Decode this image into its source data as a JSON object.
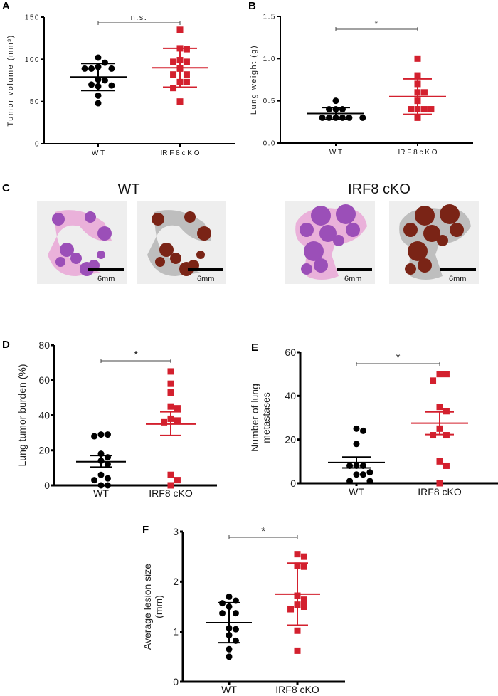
{
  "panels": {
    "A": "A",
    "B": "B",
    "C": "C",
    "D": "D",
    "E": "E",
    "F": "F"
  },
  "panel_c": {
    "groups": [
      {
        "title": "WT",
        "images": [
          {
            "stain": "H&E",
            "scale_label": "6mm"
          },
          {
            "stain": "tumor-mask",
            "scale_label": "6mm"
          }
        ]
      },
      {
        "title": "IRF8 cKO",
        "images": [
          {
            "stain": "H&E",
            "scale_label": "6mm"
          },
          {
            "stain": "tumor-mask",
            "scale_label": "6mm"
          }
        ]
      }
    ],
    "colors": {
      "he_tissue": "#e9a6d6",
      "he_tumor": "#9b4fb8",
      "mask_tissue": "#b5b5b5",
      "mask_tumor": "#7a2416",
      "background": "#eeeeee"
    }
  },
  "colors": {
    "WT": "#000000",
    "IRF8 cKO": "#d3202e"
  },
  "chart_data": [
    {
      "id": "A",
      "type": "scatter",
      "ylabel": "Tumor volume (mm³)",
      "ylabel_lines": [
        "Tumor volume (mm³)"
      ],
      "categories": [
        "W T",
        "IR F 8  c K O"
      ],
      "ylim": [
        0,
        150
      ],
      "yticks": [
        0,
        50,
        100,
        150
      ],
      "ytick_labels": [
        "0",
        "50",
        "100",
        "150"
      ],
      "error": "SD",
      "significance": {
        "label": "n.s.",
        "between": [
          0,
          1
        ]
      },
      "series": [
        {
          "group": "WT",
          "marker": "circle",
          "values": [
            102,
            96,
            91,
            89,
            89,
            89,
            76,
            75,
            70,
            69,
            68,
            57,
            48
          ],
          "mean": 79,
          "err_low": 63,
          "err_high": 95
        },
        {
          "group": "IRF8 cKO",
          "marker": "square",
          "values": [
            135,
            113,
            112,
            99,
            97,
            97,
            89,
            82,
            82,
            73,
            73,
            66,
            50
          ],
          "mean": 90,
          "err_low": 67,
          "err_high": 113
        }
      ]
    },
    {
      "id": "B",
      "type": "scatter",
      "ylabel": "Lung weight (g)",
      "ylabel_lines": [
        "Lung weight (g)"
      ],
      "categories": [
        "W T",
        "IR F 8  c K O"
      ],
      "ylim": [
        0,
        1.5
      ],
      "yticks": [
        0,
        0.5,
        1.0,
        1.5
      ],
      "ytick_labels": [
        "0.0",
        "0.5",
        "1.0",
        "1.5"
      ],
      "error": "SD",
      "significance": {
        "label": "*",
        "between": [
          0,
          1
        ]
      },
      "series": [
        {
          "group": "WT",
          "marker": "circle",
          "values": [
            0.5,
            0.4,
            0.4,
            0.4,
            0.3,
            0.3,
            0.3,
            0.3,
            0.3,
            0.3
          ],
          "mean": 0.35,
          "err_low": 0.28,
          "err_high": 0.42
        },
        {
          "group": "IRF8 cKO",
          "marker": "square",
          "values": [
            1.0,
            0.8,
            0.7,
            0.6,
            0.6,
            0.5,
            0.4,
            0.4,
            0.4,
            0.4,
            0.3
          ],
          "mean": 0.55,
          "err_low": 0.34,
          "err_high": 0.76
        }
      ]
    },
    {
      "id": "D",
      "type": "scatter",
      "ylabel": "Lung tumor burden (%)",
      "ylabel_lines": [
        "Lung tumor burden (%)"
      ],
      "categories": [
        "WT",
        "IRF8 cKO"
      ],
      "ylim": [
        0,
        80
      ],
      "yticks": [
        0,
        20,
        40,
        60,
        80
      ],
      "ytick_labels": [
        "0",
        "20",
        "40",
        "60",
        "80"
      ],
      "error": "SEM",
      "significance": {
        "label": "*",
        "between": [
          0,
          1
        ]
      },
      "series": [
        {
          "group": "WT",
          "marker": "circle",
          "values": [
            29,
            29,
            28,
            18,
            16,
            14,
            12,
            6,
            4,
            3,
            0,
            0
          ],
          "mean": 13.5,
          "err_low": 10.4,
          "err_high": 17
        },
        {
          "group": "IRF8 cKO",
          "marker": "square",
          "values": [
            65,
            58,
            53,
            45,
            44,
            38,
            37,
            36,
            6,
            3,
            0
          ],
          "mean": 35,
          "err_low": 28.5,
          "err_high": 42
        }
      ]
    },
    {
      "id": "E",
      "type": "scatter",
      "ylabel": "Number of lung metastases",
      "ylabel_lines": [
        "Number of lung",
        "metastases"
      ],
      "categories": [
        "WT",
        "IRF8 cKO"
      ],
      "ylim": [
        0,
        60
      ],
      "yticks": [
        0,
        20,
        40,
        60
      ],
      "ytick_labels": [
        "0",
        "20",
        "40",
        "60"
      ],
      "error": "SEM",
      "significance": {
        "label": "*",
        "between": [
          0,
          1
        ]
      },
      "series": [
        {
          "group": "WT",
          "marker": "circle",
          "values": [
            25,
            24,
            18,
            8,
            8,
            8,
            5,
            4,
            4,
            1,
            1
          ],
          "mean": 9.5,
          "err_low": 7,
          "err_high": 12
        },
        {
          "group": "IRF8 cKO",
          "marker": "square",
          "values": [
            50,
            50,
            47,
            35,
            33,
            25,
            22,
            22,
            10,
            8,
            0
          ],
          "mean": 27.5,
          "err_low": 22.3,
          "err_high": 32.7
        }
      ]
    },
    {
      "id": "F",
      "type": "scatter",
      "ylabel": "Average lesion size (mm)",
      "ylabel_lines": [
        "Average lesion size",
        "(mm)"
      ],
      "categories": [
        "WT",
        "IRF8 cKO"
      ],
      "ylim": [
        0,
        3
      ],
      "yticks": [
        0,
        1,
        2,
        3
      ],
      "ytick_labels": [
        "0",
        "1",
        "2",
        "3"
      ],
      "error": "SD",
      "significance": {
        "label": "*",
        "between": [
          0,
          1
        ]
      },
      "series": [
        {
          "group": "WT",
          "marker": "circle",
          "values": [
            1.7,
            1.62,
            1.57,
            1.5,
            1.37,
            1.37,
            1.07,
            1.05,
            0.93,
            0.82,
            0.65,
            0.5
          ],
          "mean": 1.18,
          "err_low": 0.78,
          "err_high": 1.58
        },
        {
          "group": "IRF8 cKO",
          "marker": "square",
          "values": [
            2.55,
            2.5,
            2.32,
            2.3,
            1.72,
            1.64,
            1.54,
            1.5,
            1.45,
            1.02,
            0.62
          ],
          "mean": 1.75,
          "err_low": 1.13,
          "err_high": 2.37
        }
      ]
    }
  ]
}
